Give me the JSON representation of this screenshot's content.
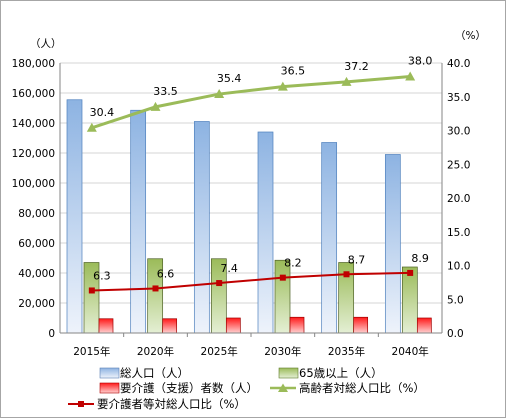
{
  "chart_data": {
    "type": "bar",
    "left_unit": "（人）",
    "right_unit": "（%）",
    "categories": [
      "2015年",
      "2020年",
      "2025年",
      "2030年",
      "2035年",
      "2040年"
    ],
    "left_axis": {
      "ylim": [
        0,
        180000
      ],
      "ticks": [
        "0",
        "20,000",
        "40,000",
        "60,000",
        "80,000",
        "100,000",
        "120,000",
        "140,000",
        "160,000",
        "180,000"
      ]
    },
    "right_axis": {
      "ylim": [
        0,
        40
      ],
      "ticks": [
        "0.0",
        "5.0",
        "10.0",
        "15.0",
        "20.0",
        "25.0",
        "30.0",
        "35.0",
        "40.0"
      ]
    },
    "series": [
      {
        "name": "総人口（人）",
        "type": "bar",
        "axis": "left",
        "color": "#8eb4e3",
        "values": [
          155500,
          148500,
          141000,
          134000,
          127000,
          119000
        ]
      },
      {
        "name": "65歳以上（人）",
        "type": "bar",
        "axis": "left",
        "color": "#9bbb59",
        "values": [
          47000,
          49500,
          49500,
          48500,
          47000,
          44000
        ]
      },
      {
        "name": "要介護（支援）者数（人）",
        "type": "bar",
        "axis": "left",
        "color": "#ff0000",
        "values": [
          9500,
          9500,
          10000,
          10500,
          10500,
          10000
        ]
      },
      {
        "name": "高齢者対総人口比（%）",
        "type": "line",
        "axis": "right",
        "color": "#9bbb59",
        "marker": "triangle",
        "values": [
          30.4,
          33.5,
          35.4,
          36.5,
          37.2,
          38.0
        ],
        "labels": [
          "30.4",
          "33.5",
          "35.4",
          "36.5",
          "37.2",
          "38.0"
        ]
      },
      {
        "name": "要介護者等対総人口比（%）",
        "type": "line",
        "axis": "right",
        "color": "#c00000",
        "marker": "square",
        "values": [
          6.3,
          6.6,
          7.4,
          8.2,
          8.7,
          8.9
        ],
        "labels": [
          "6.3",
          "6.6",
          "7.4",
          "8.2",
          "8.7",
          "8.9"
        ]
      }
    ]
  }
}
